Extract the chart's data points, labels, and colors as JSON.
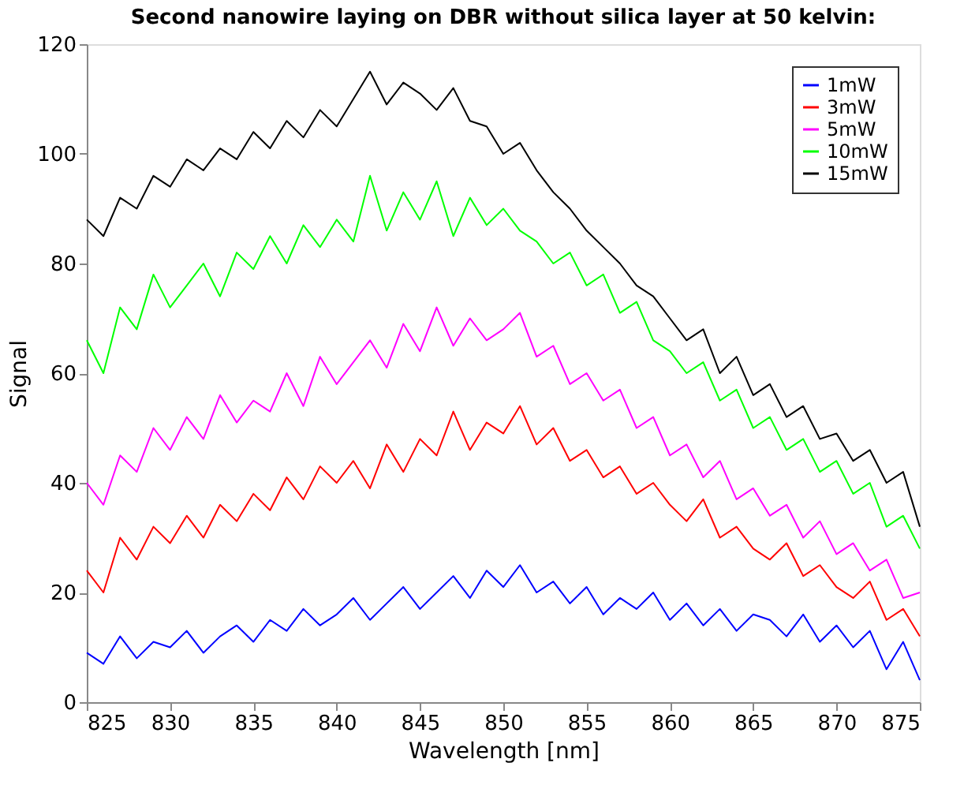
{
  "chart_data": {
    "type": "line",
    "title": "Second nanowire laying on DBR without silica layer at 50 kelvin:",
    "xlabel": "Wavelength [nm]",
    "ylabel": "Signal",
    "x": [
      825,
      826,
      827,
      828,
      829,
      830,
      831,
      832,
      833,
      834,
      835,
      836,
      837,
      838,
      839,
      840,
      841,
      842,
      843,
      844,
      845,
      846,
      847,
      848,
      849,
      850,
      851,
      852,
      853,
      854,
      855,
      856,
      857,
      858,
      859,
      860,
      861,
      862,
      863,
      864,
      865,
      866,
      867,
      868,
      869,
      870,
      871,
      872,
      873,
      874,
      875
    ],
    "series": [
      {
        "name": "1mW",
        "color": "#0000ff",
        "values": [
          9,
          7,
          12,
          8,
          11,
          10,
          13,
          9,
          12,
          14,
          11,
          15,
          13,
          17,
          14,
          16,
          19,
          15,
          18,
          21,
          17,
          20,
          23,
          19,
          24,
          21,
          25,
          20,
          22,
          18,
          21,
          16,
          19,
          17,
          20,
          15,
          18,
          14,
          17,
          13,
          16,
          15,
          12,
          16,
          11,
          14,
          10,
          13,
          6,
          11,
          4
        ]
      },
      {
        "name": "3mW",
        "color": "#ff0000",
        "values": [
          24,
          20,
          30,
          26,
          32,
          29,
          34,
          30,
          36,
          33,
          38,
          35,
          41,
          37,
          43,
          40,
          44,
          39,
          47,
          42,
          48,
          45,
          53,
          46,
          51,
          49,
          54,
          47,
          50,
          44,
          46,
          41,
          43,
          38,
          40,
          36,
          33,
          37,
          30,
          32,
          28,
          26,
          29,
          23,
          25,
          21,
          19,
          22,
          15,
          17,
          12
        ]
      },
      {
        "name": "5mW",
        "color": "#ff00ff",
        "values": [
          40,
          36,
          45,
          42,
          50,
          46,
          52,
          48,
          56,
          51,
          55,
          53,
          60,
          54,
          63,
          58,
          62,
          66,
          61,
          69,
          64,
          72,
          65,
          70,
          66,
          68,
          71,
          63,
          65,
          58,
          60,
          55,
          57,
          50,
          52,
          45,
          47,
          41,
          44,
          37,
          39,
          34,
          36,
          30,
          33,
          27,
          29,
          24,
          26,
          19,
          20
        ]
      },
      {
        "name": "10mW",
        "color": "#00ff00",
        "values": [
          66,
          60,
          72,
          68,
          78,
          72,
          76,
          80,
          74,
          82,
          79,
          85,
          80,
          87,
          83,
          88,
          84,
          96,
          86,
          93,
          88,
          95,
          85,
          92,
          87,
          90,
          86,
          84,
          80,
          82,
          76,
          78,
          71,
          73,
          66,
          64,
          60,
          62,
          55,
          57,
          50,
          52,
          46,
          48,
          42,
          44,
          38,
          40,
          32,
          34,
          28
        ]
      },
      {
        "name": "15mW",
        "color": "#000000",
        "values": [
          88,
          85,
          92,
          90,
          96,
          94,
          99,
          97,
          101,
          99,
          104,
          101,
          106,
          103,
          108,
          105,
          110,
          115,
          109,
          113,
          111,
          108,
          112,
          106,
          105,
          100,
          102,
          97,
          93,
          90,
          86,
          83,
          80,
          76,
          74,
          70,
          66,
          68,
          60,
          63,
          56,
          58,
          52,
          54,
          48,
          49,
          44,
          46,
          40,
          42,
          32
        ]
      }
    ],
    "xlim": [
      825,
      875
    ],
    "xticks": [
      825,
      830,
      835,
      840,
      845,
      850,
      855,
      860,
      865,
      870,
      875
    ],
    "ylim": [
      0,
      120
    ],
    "yticks": [
      0,
      20,
      40,
      60,
      80,
      100,
      120
    ],
    "grid": false,
    "legend": "top right"
  }
}
